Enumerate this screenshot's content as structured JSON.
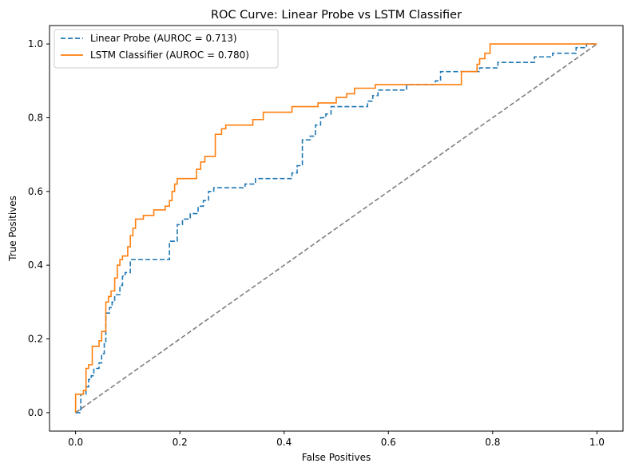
{
  "chart_data": {
    "type": "line",
    "title": "ROC Curve: Linear Probe vs LSTM Classifier",
    "xlabel": "False Positives",
    "ylabel": "True Positives",
    "xlim": [
      -0.05,
      1.05
    ],
    "ylim": [
      -0.05,
      1.05
    ],
    "xticks": [
      0.0,
      0.2,
      0.4,
      0.6,
      0.8,
      1.0
    ],
    "yticks": [
      0.0,
      0.2,
      0.4,
      0.6,
      0.8,
      1.0
    ],
    "xtick_labels": [
      "0.0",
      "0.2",
      "0.4",
      "0.6",
      "0.8",
      "1.0"
    ],
    "ytick_labels": [
      "0.0",
      "0.2",
      "0.4",
      "0.6",
      "0.8",
      "1.0"
    ],
    "grid": false,
    "legend_position": "top-left",
    "series": [
      {
        "name": "Linear Probe (AUROC = 0.713)",
        "color": "#1f77b4",
        "style": "dashed",
        "points": [
          [
            0.0,
            0.0
          ],
          [
            0.01,
            0.0
          ],
          [
            0.01,
            0.05
          ],
          [
            0.02,
            0.05
          ],
          [
            0.02,
            0.07
          ],
          [
            0.025,
            0.07
          ],
          [
            0.025,
            0.09
          ],
          [
            0.03,
            0.09
          ],
          [
            0.03,
            0.1
          ],
          [
            0.035,
            0.1
          ],
          [
            0.035,
            0.12
          ],
          [
            0.045,
            0.12
          ],
          [
            0.045,
            0.135
          ],
          [
            0.05,
            0.135
          ],
          [
            0.05,
            0.16
          ],
          [
            0.055,
            0.16
          ],
          [
            0.055,
            0.19
          ],
          [
            0.058,
            0.19
          ],
          [
            0.058,
            0.27
          ],
          [
            0.065,
            0.27
          ],
          [
            0.065,
            0.285
          ],
          [
            0.07,
            0.285
          ],
          [
            0.07,
            0.3
          ],
          [
            0.075,
            0.3
          ],
          [
            0.075,
            0.32
          ],
          [
            0.085,
            0.32
          ],
          [
            0.085,
            0.345
          ],
          [
            0.09,
            0.345
          ],
          [
            0.09,
            0.37
          ],
          [
            0.095,
            0.37
          ],
          [
            0.095,
            0.38
          ],
          [
            0.105,
            0.38
          ],
          [
            0.105,
            0.415
          ],
          [
            0.18,
            0.415
          ],
          [
            0.18,
            0.465
          ],
          [
            0.195,
            0.465
          ],
          [
            0.195,
            0.51
          ],
          [
            0.205,
            0.51
          ],
          [
            0.205,
            0.525
          ],
          [
            0.22,
            0.525
          ],
          [
            0.22,
            0.54
          ],
          [
            0.235,
            0.54
          ],
          [
            0.235,
            0.56
          ],
          [
            0.245,
            0.56
          ],
          [
            0.245,
            0.575
          ],
          [
            0.255,
            0.575
          ],
          [
            0.255,
            0.6
          ],
          [
            0.265,
            0.6
          ],
          [
            0.265,
            0.61
          ],
          [
            0.325,
            0.61
          ],
          [
            0.325,
            0.62
          ],
          [
            0.345,
            0.62
          ],
          [
            0.345,
            0.635
          ],
          [
            0.415,
            0.635
          ],
          [
            0.415,
            0.65
          ],
          [
            0.425,
            0.65
          ],
          [
            0.425,
            0.67
          ],
          [
            0.435,
            0.67
          ],
          [
            0.435,
            0.74
          ],
          [
            0.45,
            0.74
          ],
          [
            0.45,
            0.75
          ],
          [
            0.46,
            0.75
          ],
          [
            0.46,
            0.78
          ],
          [
            0.47,
            0.78
          ],
          [
            0.47,
            0.8
          ],
          [
            0.48,
            0.8
          ],
          [
            0.48,
            0.81
          ],
          [
            0.49,
            0.81
          ],
          [
            0.49,
            0.83
          ],
          [
            0.56,
            0.83
          ],
          [
            0.56,
            0.845
          ],
          [
            0.57,
            0.845
          ],
          [
            0.57,
            0.86
          ],
          [
            0.58,
            0.86
          ],
          [
            0.58,
            0.875
          ],
          [
            0.635,
            0.875
          ],
          [
            0.635,
            0.89
          ],
          [
            0.69,
            0.89
          ],
          [
            0.69,
            0.9
          ],
          [
            0.7,
            0.9
          ],
          [
            0.7,
            0.925
          ],
          [
            0.775,
            0.925
          ],
          [
            0.775,
            0.935
          ],
          [
            0.81,
            0.935
          ],
          [
            0.81,
            0.95
          ],
          [
            0.88,
            0.95
          ],
          [
            0.88,
            0.965
          ],
          [
            0.915,
            0.965
          ],
          [
            0.915,
            0.975
          ],
          [
            0.96,
            0.975
          ],
          [
            0.96,
            0.99
          ],
          [
            0.98,
            0.99
          ],
          [
            0.98,
            1.0
          ],
          [
            1.0,
            1.0
          ]
        ]
      },
      {
        "name": "LSTM Classifier (AUROC = 0.780)",
        "color": "#ff7f0e",
        "style": "solid",
        "points": [
          [
            0.0,
            0.0
          ],
          [
            0.0,
            0.05
          ],
          [
            0.015,
            0.05
          ],
          [
            0.015,
            0.06
          ],
          [
            0.02,
            0.06
          ],
          [
            0.02,
            0.12
          ],
          [
            0.025,
            0.12
          ],
          [
            0.025,
            0.13
          ],
          [
            0.032,
            0.13
          ],
          [
            0.032,
            0.18
          ],
          [
            0.045,
            0.18
          ],
          [
            0.045,
            0.195
          ],
          [
            0.05,
            0.195
          ],
          [
            0.05,
            0.22
          ],
          [
            0.058,
            0.22
          ],
          [
            0.058,
            0.3
          ],
          [
            0.063,
            0.3
          ],
          [
            0.063,
            0.315
          ],
          [
            0.068,
            0.315
          ],
          [
            0.068,
            0.33
          ],
          [
            0.075,
            0.33
          ],
          [
            0.075,
            0.365
          ],
          [
            0.08,
            0.365
          ],
          [
            0.08,
            0.4
          ],
          [
            0.085,
            0.4
          ],
          [
            0.085,
            0.415
          ],
          [
            0.09,
            0.415
          ],
          [
            0.09,
            0.425
          ],
          [
            0.1,
            0.425
          ],
          [
            0.1,
            0.45
          ],
          [
            0.105,
            0.45
          ],
          [
            0.105,
            0.48
          ],
          [
            0.11,
            0.48
          ],
          [
            0.11,
            0.5
          ],
          [
            0.115,
            0.5
          ],
          [
            0.115,
            0.525
          ],
          [
            0.13,
            0.525
          ],
          [
            0.13,
            0.535
          ],
          [
            0.15,
            0.535
          ],
          [
            0.15,
            0.55
          ],
          [
            0.172,
            0.55
          ],
          [
            0.172,
            0.56
          ],
          [
            0.18,
            0.56
          ],
          [
            0.18,
            0.575
          ],
          [
            0.185,
            0.575
          ],
          [
            0.185,
            0.6
          ],
          [
            0.19,
            0.6
          ],
          [
            0.19,
            0.62
          ],
          [
            0.195,
            0.62
          ],
          [
            0.195,
            0.635
          ],
          [
            0.232,
            0.635
          ],
          [
            0.232,
            0.66
          ],
          [
            0.24,
            0.66
          ],
          [
            0.24,
            0.68
          ],
          [
            0.248,
            0.68
          ],
          [
            0.248,
            0.695
          ],
          [
            0.268,
            0.695
          ],
          [
            0.268,
            0.755
          ],
          [
            0.28,
            0.755
          ],
          [
            0.28,
            0.77
          ],
          [
            0.288,
            0.77
          ],
          [
            0.288,
            0.78
          ],
          [
            0.34,
            0.78
          ],
          [
            0.34,
            0.795
          ],
          [
            0.36,
            0.795
          ],
          [
            0.36,
            0.815
          ],
          [
            0.415,
            0.815
          ],
          [
            0.415,
            0.83
          ],
          [
            0.465,
            0.83
          ],
          [
            0.465,
            0.84
          ],
          [
            0.5,
            0.84
          ],
          [
            0.5,
            0.855
          ],
          [
            0.52,
            0.855
          ],
          [
            0.52,
            0.865
          ],
          [
            0.535,
            0.865
          ],
          [
            0.535,
            0.88
          ],
          [
            0.575,
            0.88
          ],
          [
            0.575,
            0.89
          ],
          [
            0.635,
            0.89
          ],
          [
            0.635,
            0.89
          ],
          [
            0.74,
            0.89
          ],
          [
            0.74,
            0.925
          ],
          [
            0.77,
            0.925
          ],
          [
            0.77,
            0.945
          ],
          [
            0.775,
            0.945
          ],
          [
            0.775,
            0.96
          ],
          [
            0.785,
            0.96
          ],
          [
            0.785,
            0.975
          ],
          [
            0.795,
            0.975
          ],
          [
            0.795,
            1.0
          ],
          [
            1.0,
            1.0
          ]
        ]
      },
      {
        "name": "",
        "color": "#7f7f7f",
        "style": "dashed",
        "points": [
          [
            0.0,
            0.0
          ],
          [
            1.0,
            1.0
          ]
        ]
      }
    ]
  }
}
